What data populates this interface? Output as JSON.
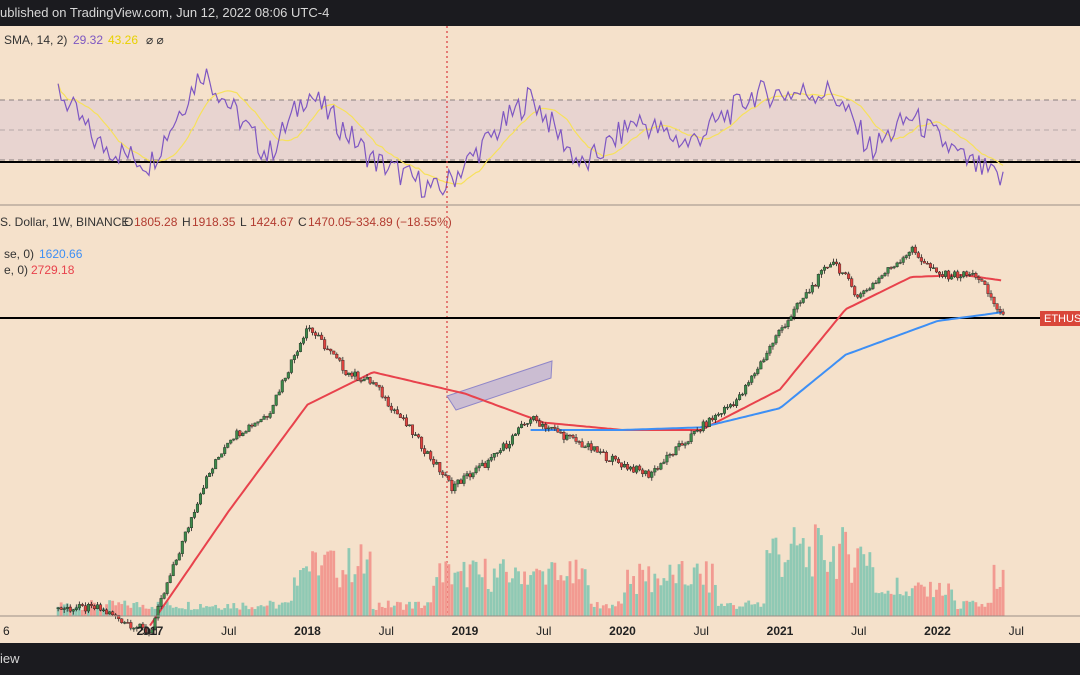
{
  "header": {
    "published_text": "ublished on TradingView.com, Jun 12, 2022 08:06 UTC-4"
  },
  "footer": {
    "brand_text": "iew"
  },
  "rsi": {
    "label": "SMA, 14, 2)",
    "value": "29.32",
    "sma_value": "43.26",
    "extra": "⌀  ⌀",
    "upper_band": 70,
    "mid_band": 50,
    "lower_band": 30
  },
  "main": {
    "symbol_text": "S. Dollar, 1W, BINANCE",
    "o_label": "O",
    "o_value": "1805.28",
    "h_label": "H",
    "h_value": "1918.35",
    "l_label": "L",
    "l_value": "1424.67",
    "c_label": "C",
    "c_value": "1470.05",
    "change": "−334.89 (−18.55%)",
    "ma1_label": "se, 0)",
    "ma1_value": "1620.66",
    "ma2_label": "e, 0)",
    "ma2_value": "2729.18",
    "price_tag": "ETHUS",
    "support_level": 1470
  },
  "xaxis": {
    "labels": [
      "6",
      "Jul",
      "2017",
      "Jul",
      "2018",
      "Jul",
      "2019",
      "Jul",
      "2020",
      "Jul",
      "2021",
      "Jul",
      "2022",
      "Jul"
    ]
  },
  "colors": {
    "background": "#f5e1cb",
    "rsi_line": "#7e57c2",
    "rsi_sma": "#f7e15b",
    "ma_red": "#e8424c",
    "ma_blue": "#3d8ff5",
    "up_candle": "#3d8a4a",
    "down_candle": "#e0433f",
    "vol_up": "#8fc9b4",
    "vol_down": "#f29a91",
    "channel": "#a8a0d8"
  },
  "chart_data": {
    "type": "candlestick",
    "symbol": "ETH/USD",
    "timeframe": "1W",
    "approx_close_path": {
      "dates": [
        "2016-06",
        "2016-09",
        "2017-01",
        "2017-05",
        "2017-07",
        "2017-10",
        "2018-01",
        "2018-04",
        "2018-06",
        "2018-09",
        "2018-12",
        "2019-03",
        "2019-06",
        "2019-09",
        "2020-01",
        "2020-03",
        "2020-07",
        "2020-10",
        "2021-01",
        "2021-05",
        "2021-07",
        "2021-11",
        "2022-01",
        "2022-04",
        "2022-06"
      ],
      "values": [
        12,
        12,
        8,
        90,
        200,
        300,
        1300,
        600,
        500,
        220,
        90,
        140,
        280,
        200,
        130,
        110,
        240,
        400,
        1200,
        3900,
        2100,
        4600,
        3000,
        3000,
        1470
      ]
    },
    "ma_red_path": {
      "dates": [
        "2017-01",
        "2017-07",
        "2018-01",
        "2018-06",
        "2019-01",
        "2019-07",
        "2020-01",
        "2020-07",
        "2021-01",
        "2021-06",
        "2021-11",
        "2022-03",
        "2022-06"
      ],
      "values": [
        9,
        60,
        350,
        600,
        420,
        260,
        230,
        230,
        450,
        1700,
        2900,
        3000,
        2729.18
      ]
    },
    "ma_blue_path": {
      "dates": [
        "2019-06",
        "2020-01",
        "2020-07",
        "2021-01",
        "2021-06",
        "2022-01",
        "2022-06"
      ],
      "values": [
        230,
        230,
        240,
        330,
        800,
        1400,
        1620.66
      ]
    },
    "rsi_path": {
      "dates": [
        "2016-06",
        "2016-09",
        "2017-01",
        "2017-05",
        "2017-10",
        "2018-01",
        "2018-06",
        "2018-11",
        "2019-06",
        "2019-10",
        "2020-02",
        "2020-06",
        "2020-11",
        "2021-05",
        "2021-08",
        "2021-11",
        "2022-03",
        "2022-06"
      ],
      "values": [
        75,
        48,
        38,
        85,
        42,
        74,
        40,
        24,
        72,
        36,
        60,
        48,
        73,
        74,
        45,
        62,
        40,
        29.32
      ]
    },
    "volume_pattern": "elevated in early 2018, mid 2019, 2020 and 2021; spike in June 2022"
  }
}
